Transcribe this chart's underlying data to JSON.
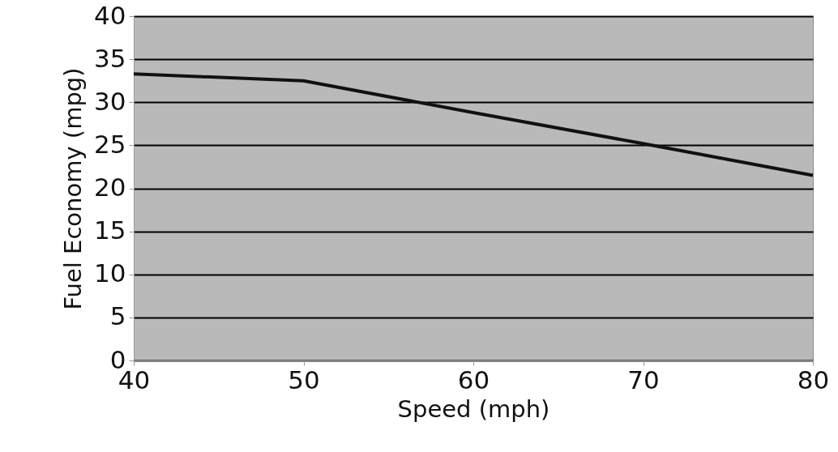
{
  "chart_data": {
    "type": "line",
    "xlabel": "Speed (mph)",
    "ylabel": "Fuel Economy (mpg)",
    "x": [
      40,
      50,
      60,
      70,
      80
    ],
    "series": [
      {
        "color": "#111111",
        "values": [
          33.3,
          32.5,
          28.8,
          25.2,
          21.5
        ]
      }
    ],
    "xlim": [
      40,
      80
    ],
    "xticks": [
      40,
      50,
      60,
      70,
      80
    ],
    "ylim": [
      0,
      40
    ],
    "yticks": [
      0,
      5,
      10,
      15,
      20,
      25,
      30,
      35,
      40
    ],
    "grid": "y",
    "marker": "none",
    "line_style": "solid"
  }
}
